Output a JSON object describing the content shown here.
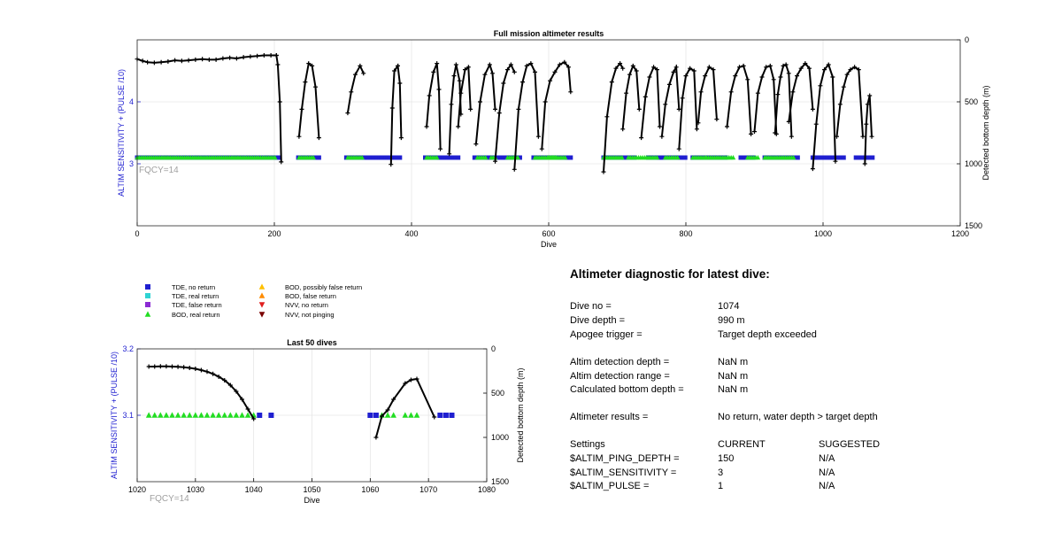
{
  "colors": {
    "tde_no_return": "#1f1fd0",
    "tde_real_return": "#2fd3d3",
    "tde_false_return": "#8b2bd3",
    "bod_real_return": "#22dd22",
    "bod_possibly_false": "#ffc000",
    "bod_false": "#ff8c00",
    "nvv_no_return": "#e02020",
    "nvv_not_pinging": "#7a0000",
    "bottom_line": "#000000",
    "left_axis": "#1f1fd0",
    "fqcy": "#a0a0a0"
  },
  "legend": [
    {
      "label": "TDE, no return",
      "marker": "square",
      "color_key": "tde_no_return"
    },
    {
      "label": "TDE, real return",
      "marker": "square",
      "color_key": "tde_real_return"
    },
    {
      "label": "TDE, false return",
      "marker": "square",
      "color_key": "tde_false_return"
    },
    {
      "label": "BOD, real return",
      "marker": "triangle-up",
      "color_key": "bod_real_return"
    },
    {
      "label": "BOD, possibly false return",
      "marker": "triangle-up",
      "color_key": "bod_possibly_false"
    },
    {
      "label": "BOD, false return",
      "marker": "triangle-up",
      "color_key": "bod_false"
    },
    {
      "label": "NVV, no return",
      "marker": "triangle-down",
      "color_key": "nvv_no_return"
    },
    {
      "label": "NVV, not pinging",
      "marker": "triangle-down",
      "color_key": "nvv_not_pinging"
    }
  ],
  "chart_data": [
    {
      "type": "scatter",
      "title": "Full mission altimeter results",
      "xlabel": "Dive",
      "ylabel_left": "ALTIM SENSITIVITY + (PULSE /10)",
      "ylabel_right": "Detected bottom depth (m)",
      "annotation": "FQCY=14",
      "xlim": [
        0,
        1200
      ],
      "ylim_left": [
        2,
        5
      ],
      "ylim_right": [
        1500,
        0
      ],
      "right_axis_reversed": true,
      "xticks": [
        "0",
        "200",
        "400",
        "600",
        "800",
        "1000",
        "1200"
      ],
      "yticks_left": [
        "3",
        "4"
      ],
      "yticks_right": [
        "0",
        "500",
        "1000",
        "1500"
      ],
      "grid": true,
      "markers": [
        {
          "code": "tde_no_return",
          "y": 3.1,
          "x_ranges": [
            [
              0,
              208
            ],
            [
              235,
              265
            ],
            [
              305,
              385
            ],
            [
              420,
              470
            ],
            [
              492,
              560
            ],
            [
              578,
              632
            ],
            [
              680,
              725
            ],
            [
              745,
              800
            ],
            [
              810,
              860
            ],
            [
              880,
              900
            ],
            [
              915,
              965
            ],
            [
              985,
              1032
            ],
            [
              1048,
              1074
            ]
          ]
        },
        {
          "code": "bod_real_return",
          "y": 3.1,
          "x_ranges": [
            [
              0,
              203
            ],
            [
              236,
              258
            ],
            [
              307,
              330
            ],
            [
              422,
              437
            ],
            [
              496,
              508
            ],
            [
              516,
              522
            ],
            [
              540,
              555
            ],
            [
              580,
              610
            ],
            [
              600,
              625
            ],
            [
              680,
              708
            ],
            [
              716,
              760
            ],
            [
              770,
              790
            ],
            [
              810,
              830
            ],
            [
              830,
              870
            ],
            [
              890,
              905
            ],
            [
              915,
              958
            ]
          ]
        }
      ],
      "series": [
        {
          "name": "",
          "type": "line",
          "axis": "right",
          "segments": [
            {
              "x": [
                0,
                8,
                15,
                25,
                35,
                45,
                55,
                65,
                75,
                85,
                95,
                105,
                115,
                125,
                135,
                145,
                155,
                165,
                175,
                185,
                195,
                203
              ],
              "y": [
                155,
                170,
                180,
                185,
                180,
                175,
                165,
                170,
                165,
                160,
                155,
                160,
                160,
                150,
                145,
                150,
                140,
                135,
                130,
                125,
                125,
                125
              ]
            },
            {
              "x": [
                203,
                205,
                208,
                210
              ],
              "y": [
                125,
                200,
                500,
                985
              ]
            },
            {
              "x": [
                236,
                240,
                245,
                250,
                255,
                260,
                265
              ],
              "y": [
                780,
                560,
                340,
                190,
                210,
                380,
                790
              ]
            },
            {
              "x": [
                307,
                312,
                318,
                325,
                330
              ],
              "y": [
                590,
                420,
                280,
                210,
                270
              ]
            },
            {
              "x": [
                370,
                372,
                375,
                380,
                383,
                385
              ],
              "y": [
                1005,
                550,
                250,
                210,
                350,
                790
              ]
            },
            {
              "x": [
                422,
                426,
                432,
                437,
                440,
                442
              ],
              "y": [
                700,
                450,
                260,
                190,
                400,
                880
              ]
            },
            {
              "x": [
                455,
                458,
                462,
                465,
                470,
                472
              ],
              "y": [
                920,
                520,
                290,
                200,
                330,
                600
              ]
            },
            {
              "x": [
                468,
                472,
                478,
                483,
                486
              ],
              "y": [
                700,
                430,
                240,
                220,
                560
              ]
            },
            {
              "x": [
                494,
                500,
                507,
                514,
                518,
                522
              ],
              "y": [
                840,
                500,
                280,
                200,
                270,
                560
              ]
            },
            {
              "x": [
                522,
                528,
                534,
                540,
                545,
                550
              ],
              "y": [
                980,
                590,
                350,
                240,
                200,
                260
              ]
            },
            {
              "x": [
                550,
                556,
                562,
                568,
                574,
                580,
                585
              ],
              "y": [
                1045,
                560,
                340,
                210,
                190,
                260,
                780
              ]
            },
            {
              "x": [
                590,
                595,
                602,
                609,
                616,
                623,
                629,
                632
              ],
              "y": [
                880,
                500,
                330,
                260,
                200,
                180,
                220,
                420
              ]
            },
            {
              "x": [
                680,
                685,
                692,
                698,
                704,
                708
              ],
              "y": [
                1065,
                620,
                340,
                230,
                190,
                230
              ]
            },
            {
              "x": [
                708,
                713,
                718,
                723,
                728,
                732
              ],
              "y": [
                720,
                430,
                280,
                210,
                250,
                560
              ]
            },
            {
              "x": [
                735,
                741,
                747,
                753,
                758,
                762
              ],
              "y": [
                790,
                460,
                300,
                220,
                240,
                700
              ]
            },
            {
              "x": [
                765,
                770,
                776,
                782,
                786,
                790
              ],
              "y": [
                780,
                520,
                360,
                260,
                220,
                560
              ]
            },
            {
              "x": [
                790,
                795,
                800,
                806,
                812,
                816
              ],
              "y": [
                880,
                470,
                290,
                230,
                250,
                720
              ]
            },
            {
              "x": [
                818,
                822,
                828,
                834,
                840,
                845
              ],
              "y": [
                670,
                420,
                290,
                220,
                240,
                640
              ]
            },
            {
              "x": [
                860,
                866,
                872,
                878,
                884,
                890,
                895
              ],
              "y": [
                700,
                420,
                290,
                220,
                210,
                320,
                760
              ]
            },
            {
              "x": [
                900,
                905,
                911,
                917,
                923,
                928,
                932
              ],
              "y": [
                740,
                430,
                300,
                220,
                210,
                320,
                760
              ]
            },
            {
              "x": [
                930,
                934,
                938,
                942,
                946,
                950,
                954
              ],
              "y": [
                750,
                440,
                300,
                210,
                200,
                270,
                780
              ]
            },
            {
              "x": [
                950,
                956,
                962,
                968,
                974,
                980,
                985
              ],
              "y": [
                660,
                420,
                290,
                230,
                190,
                230,
                560
              ]
            },
            {
              "x": [
                985,
                990,
                996,
                1002,
                1008,
                1014,
                1018
              ],
              "y": [
                1040,
                680,
                370,
                240,
                200,
                300,
                980
              ]
            },
            {
              "x": [
                1020,
                1025,
                1030,
                1035,
                1040,
                1046,
                1052,
                1058
              ],
              "y": [
                780,
                520,
                380,
                280,
                240,
                220,
                240,
                780
              ]
            },
            {
              "x": [
                1061,
                1063,
                1065,
                1068,
                1071
              ],
              "y": [
                1000,
                680,
                520,
                450,
                780
              ]
            }
          ]
        }
      ]
    },
    {
      "type": "scatter",
      "title": "Last 50 dives",
      "xlabel": "Dive",
      "ylabel_left": "ALTIM SENSITIVITY + (PULSE /10)",
      "ylabel_right": "Detected bottom depth (m)",
      "annotation": "FQCY=14",
      "xlim": [
        1020,
        1080
      ],
      "ylim_left": [
        3.0,
        3.2
      ],
      "ylim_right": [
        1500,
        0
      ],
      "right_axis_reversed": true,
      "xticks": [
        "1020",
        "1030",
        "1040",
        "1050",
        "1060",
        "1070",
        "1080"
      ],
      "yticks_left": [
        "3.1",
        "3.2"
      ],
      "yticks_right": [
        "0",
        "500",
        "1000",
        "1500"
      ],
      "grid": true,
      "markers": [
        {
          "code": "tde_no_return",
          "y": 3.1,
          "x": [
            1041,
            1043,
            1060,
            1061,
            1072,
            1073,
            1074
          ]
        },
        {
          "code": "bod_real_return",
          "y": 3.1,
          "x": [
            1022,
            1023,
            1024,
            1025,
            1026,
            1027,
            1028,
            1029,
            1030,
            1031,
            1032,
            1033,
            1034,
            1035,
            1036,
            1037,
            1038,
            1039,
            1040,
            1062,
            1063,
            1064,
            1066,
            1067,
            1068
          ]
        }
      ],
      "series": [
        {
          "name": "",
          "type": "line",
          "axis": "right",
          "segments": [
            {
              "x": [
                1022,
                1023,
                1024,
                1025,
                1026,
                1027,
                1028,
                1029,
                1030,
                1031,
                1032,
                1033,
                1034,
                1035,
                1036,
                1037,
                1038,
                1039,
                1040
              ],
              "y": [
                200,
                200,
                198,
                198,
                200,
                203,
                208,
                215,
                225,
                240,
                258,
                282,
                315,
                355,
                410,
                480,
                570,
                680,
                790
              ]
            },
            {
              "x": [
                1061,
                1062,
                1063,
                1064,
                1066,
                1067,
                1068,
                1071
              ],
              "y": [
                1000,
                760,
                690,
                570,
                390,
                350,
                340,
                770
              ]
            }
          ]
        }
      ]
    }
  ],
  "diagnostic": {
    "title": "Altimeter diagnostic for latest dive:",
    "rows": [
      {
        "label": "Dive no =",
        "value": "1074"
      },
      {
        "label": "Dive depth =",
        "value": "990 m"
      },
      {
        "label": "Apogee trigger =",
        "value": "Target depth exceeded"
      },
      {
        "label": "Altim detection depth =",
        "value": "NaN m"
      },
      {
        "label": "Altim detection range =",
        "value": "NaN m"
      },
      {
        "label": "Calculated bottom depth =",
        "value": "NaN m"
      },
      {
        "label": "Altimeter results =",
        "value": "No return, water depth > target depth"
      }
    ],
    "settings": {
      "header": {
        "label": "Settings",
        "current": "CURRENT",
        "suggested": "SUGGESTED"
      },
      "rows": [
        {
          "label": "$ALTIM_PING_DEPTH =",
          "current": "150",
          "suggested": "N/A"
        },
        {
          "label": "$ALTIM_SENSITIVITY =",
          "current": "3",
          "suggested": "N/A"
        },
        {
          "label": "$ALTIM_PULSE =",
          "current": "1",
          "suggested": "N/A"
        }
      ]
    }
  }
}
